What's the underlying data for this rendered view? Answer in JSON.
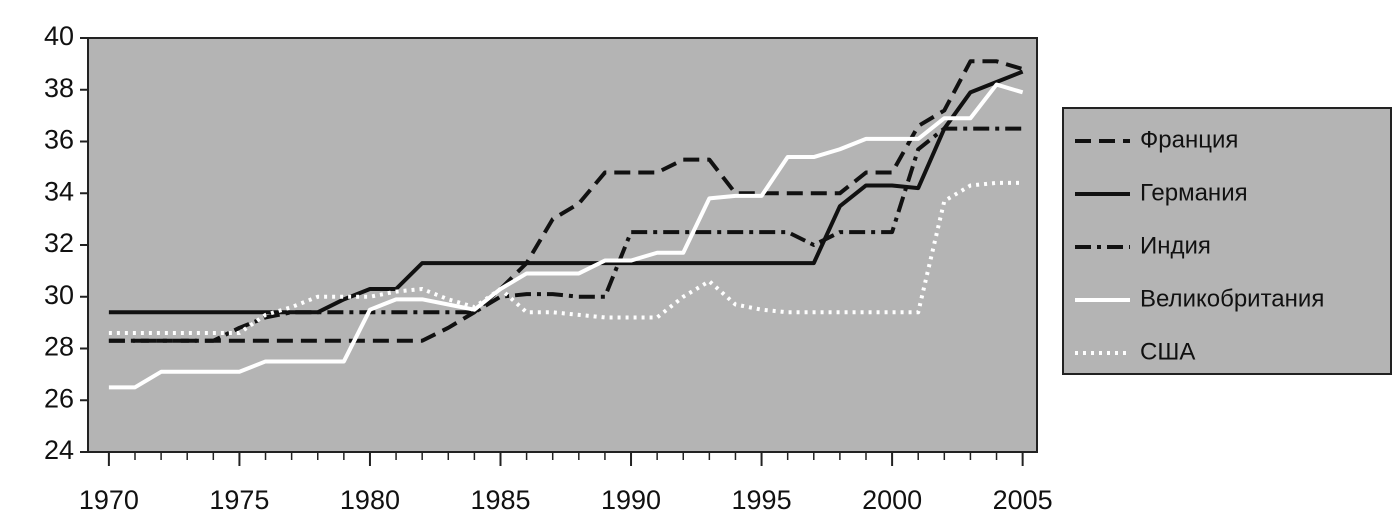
{
  "chart_data": {
    "type": "line",
    "x": [
      1970,
      1971,
      1972,
      1973,
      1974,
      1975,
      1976,
      1977,
      1978,
      1979,
      1980,
      1981,
      1982,
      1983,
      1984,
      1985,
      1986,
      1987,
      1988,
      1989,
      1990,
      1991,
      1992,
      1993,
      1994,
      1995,
      1996,
      1997,
      1998,
      1999,
      2000,
      2001,
      2002,
      2003,
      2004,
      2005
    ],
    "xlim": [
      1969.2,
      2005.55
    ],
    "xticks": [
      1970,
      1975,
      1980,
      1985,
      1990,
      1995,
      2000,
      2005
    ],
    "ylim": [
      24,
      40
    ],
    "yticks": [
      24,
      26,
      28,
      30,
      32,
      34,
      36,
      38,
      40
    ],
    "legend": "right",
    "series": [
      {
        "name": "Франция",
        "color": "#111111",
        "dash": "dashed",
        "values": [
          28.3,
          28.3,
          28.3,
          28.3,
          28.3,
          28.3,
          28.3,
          28.3,
          28.3,
          28.3,
          28.3,
          28.3,
          28.3,
          28.8,
          29.4,
          30.3,
          31.3,
          33.0,
          33.6,
          34.8,
          34.8,
          34.8,
          35.3,
          35.3,
          34.0,
          34.0,
          34.0,
          34.0,
          34.0,
          34.8,
          34.8,
          36.6,
          37.2,
          39.1,
          39.1,
          38.8
        ]
      },
      {
        "name": "Германия",
        "color": "#111111",
        "dash": "solid",
        "values": [
          29.4,
          29.4,
          29.4,
          29.4,
          29.4,
          29.4,
          29.4,
          29.4,
          29.4,
          29.9,
          30.3,
          30.3,
          31.3,
          31.3,
          31.3,
          31.3,
          31.3,
          31.3,
          31.3,
          31.3,
          31.3,
          31.3,
          31.3,
          31.3,
          31.3,
          31.3,
          31.3,
          31.3,
          33.5,
          34.3,
          34.3,
          34.2,
          36.5,
          37.9,
          38.3,
          38.7
        ]
      },
      {
        "name": "Индия",
        "color": "#111111",
        "dash": "dashdot",
        "values": [
          28.3,
          28.3,
          28.3,
          28.3,
          28.3,
          28.8,
          29.2,
          29.4,
          29.4,
          29.4,
          29.4,
          29.4,
          29.4,
          29.4,
          29.4,
          30.0,
          30.1,
          30.1,
          30.0,
          30.0,
          32.5,
          32.5,
          32.5,
          32.5,
          32.5,
          32.5,
          32.5,
          32.0,
          32.5,
          32.5,
          32.5,
          35.7,
          36.5,
          36.5,
          36.5,
          36.5
        ]
      },
      {
        "name": "Великобритания",
        "color": "#ffffff",
        "dash": "solid",
        "values": [
          26.5,
          26.5,
          27.1,
          27.1,
          27.1,
          27.1,
          27.5,
          27.5,
          27.5,
          27.5,
          29.5,
          29.9,
          29.9,
          29.7,
          29.5,
          30.3,
          30.9,
          30.9,
          30.9,
          31.4,
          31.4,
          31.7,
          31.7,
          33.8,
          33.9,
          33.9,
          35.4,
          35.4,
          35.7,
          36.1,
          36.1,
          36.1,
          36.9,
          36.9,
          38.2,
          37.9
        ]
      },
      {
        "name": "США",
        "color": "#ffffff",
        "dash": "dotted",
        "values": [
          28.6,
          28.6,
          28.6,
          28.6,
          28.6,
          28.6,
          29.3,
          29.6,
          30.0,
          30.0,
          30.0,
          30.2,
          30.3,
          29.9,
          29.6,
          30.3,
          29.4,
          29.4,
          29.3,
          29.2,
          29.2,
          29.2,
          30.0,
          30.6,
          29.7,
          29.5,
          29.4,
          29.4,
          29.4,
          29.4,
          29.4,
          29.4,
          33.7,
          34.3,
          34.4,
          34.4
        ]
      }
    ]
  }
}
